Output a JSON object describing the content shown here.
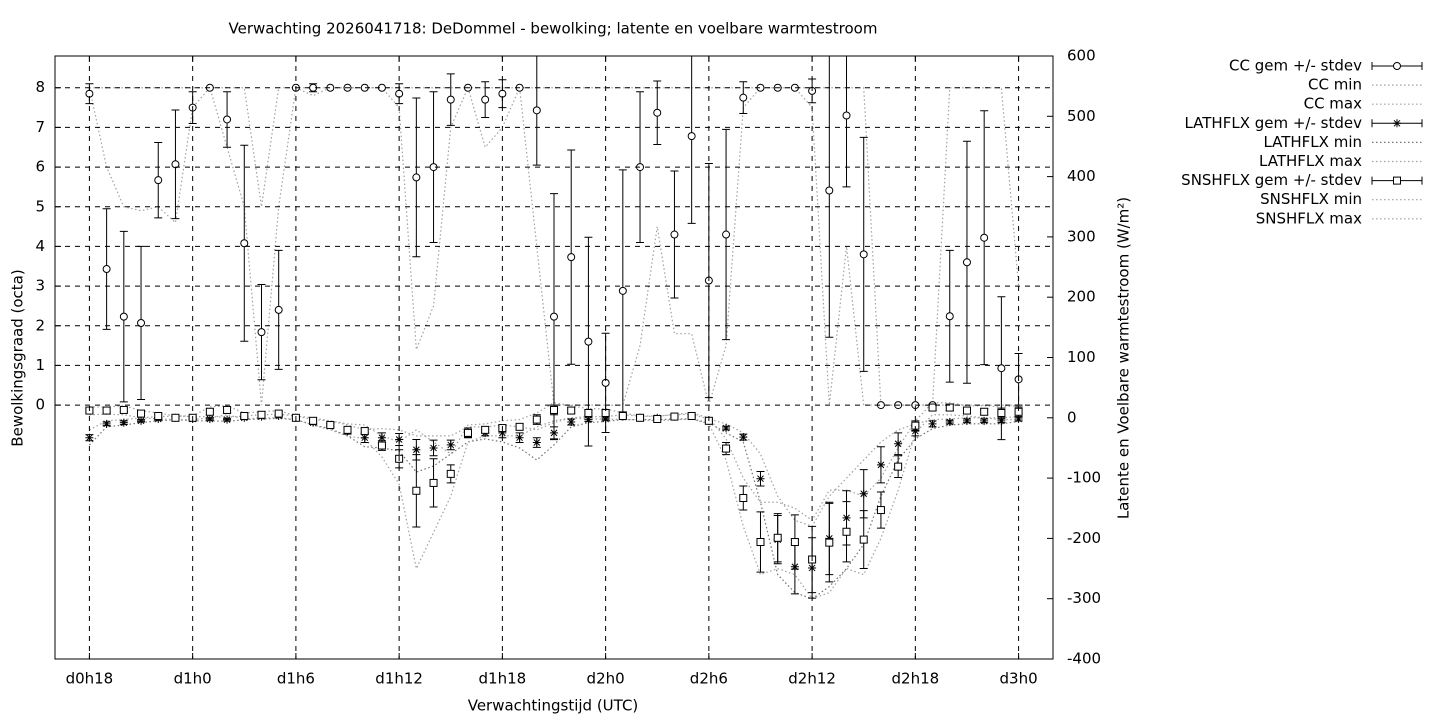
{
  "chart_data": {
    "type": "errorbar",
    "title": "Verwachting 2026041718: DeDommel - bewolking; latente en voelbare warmtestroom",
    "xlabel": "Verwachtingstijd (UTC)",
    "ylabel": "Bewolkingsgraad (octa)",
    "y2label": "Latente en Voelbare warmtestroom (W/m²)",
    "x": [
      18,
      19,
      20,
      21,
      22,
      23,
      24,
      25,
      26,
      27,
      28,
      29,
      30,
      31,
      32,
      33,
      34,
      35,
      36,
      37,
      38,
      39,
      40,
      41,
      42,
      43,
      44,
      45,
      46,
      47,
      48,
      49,
      50,
      51,
      52,
      53,
      54,
      55,
      56,
      57,
      58,
      59,
      60,
      61,
      62,
      63,
      64,
      65,
      66,
      67,
      68,
      69,
      70,
      71,
      72
    ],
    "xlim": [
      16,
      74
    ],
    "xticks": [
      {
        "value": 18,
        "label": "d0h18"
      },
      {
        "value": 24,
        "label": "d1h0"
      },
      {
        "value": 30,
        "label": "d1h6"
      },
      {
        "value": 36,
        "label": "d1h12"
      },
      {
        "value": 42,
        "label": "d1h18"
      },
      {
        "value": 48,
        "label": "d2h0"
      },
      {
        "value": 54,
        "label": "d2h6"
      },
      {
        "value": 60,
        "label": "d2h12"
      },
      {
        "value": 66,
        "label": "d2h18"
      },
      {
        "value": 72,
        "label": "d3h0"
      }
    ],
    "ylim": [
      -6.4,
      8.8
    ],
    "yticks": [
      0,
      1,
      2,
      3,
      4,
      5,
      6,
      7,
      8
    ],
    "y2lim": [
      -400,
      600
    ],
    "y2ticks": [
      -400,
      -300,
      -200,
      -100,
      0,
      100,
      200,
      300,
      400,
      500,
      600
    ],
    "grid": true,
    "legend": "outside top right",
    "series": [
      {
        "name": "CC gem +/- stdev",
        "color": "#000000",
        "style": "errorbars",
        "marker": "circle",
        "values": [
          7.85,
          3.43,
          2.23,
          2.07,
          5.67,
          6.07,
          7.5,
          8,
          7.2,
          4.08,
          1.84,
          2.4,
          8,
          8,
          8,
          8,
          8,
          8,
          7.85,
          5.74,
          6.0,
          7.7,
          8,
          7.7,
          7.85,
          8,
          7.43,
          2.23,
          3.73,
          1.6,
          0.56,
          2.88,
          6.0,
          7.37,
          4.3,
          6.78,
          3.14,
          4.3,
          7.75,
          8,
          8,
          8,
          7.92,
          5.41,
          7.3,
          3.8,
          0,
          0,
          0,
          0,
          2.24,
          3.6,
          4.22,
          0.93,
          0.65
        ],
        "errors": [
          0.25,
          1.52,
          2.15,
          1.93,
          0.95,
          1.37,
          0.4,
          0,
          0.7,
          2.47,
          1.2,
          1.5,
          0,
          0.1,
          0,
          0,
          0,
          0,
          0.25,
          2.0,
          1.9,
          0.65,
          0,
          0.45,
          0.35,
          0,
          1.38,
          3.1,
          2.7,
          2.63,
          1.25,
          3.05,
          1.9,
          0.8,
          1.6,
          2.2,
          2.95,
          2.65,
          0.4,
          0,
          0,
          0,
          0.3,
          3.7,
          1.8,
          2.95,
          0,
          0,
          0,
          0,
          1.66,
          3.05,
          3.2,
          1.8,
          0.65
        ]
      },
      {
        "name": "CC min",
        "color": "#a0a0a0",
        "style": "dotted",
        "values": [
          8,
          6,
          5,
          4.9,
          5,
          4.6,
          7.5,
          8,
          6.5,
          5,
          0,
          5,
          8,
          7.8,
          8,
          8,
          8,
          8,
          7.5,
          1.4,
          2.5,
          7,
          8,
          6.5,
          7,
          8,
          4,
          0,
          0,
          0,
          0,
          0,
          1.5,
          4.5,
          1.8,
          1.8,
          0,
          1.5,
          7.5,
          8,
          8,
          8,
          7.5,
          0,
          4,
          0,
          0,
          0,
          0,
          0,
          0,
          0,
          0,
          0,
          0
        ]
      },
      {
        "name": "CC max",
        "color": "#a0a0a0",
        "style": "dotted",
        "values": [
          8,
          8,
          8,
          8,
          8,
          8,
          8,
          8,
          8,
          8,
          5,
          8,
          8,
          8,
          8,
          8,
          8,
          8,
          8,
          8,
          8,
          8,
          8,
          8,
          8,
          8,
          8,
          8,
          8,
          8,
          8,
          8,
          8,
          8,
          8,
          8,
          8,
          8,
          8,
          8,
          8,
          8,
          8,
          8,
          8,
          8,
          0,
          0,
          0,
          0,
          8,
          8,
          8,
          8,
          3
        ]
      },
      {
        "name": "LATHFLX gem +/- stdev",
        "color": "#000000",
        "style": "errorbars",
        "marker": "star",
        "axis": "y2",
        "values": [
          -33,
          -10,
          -8,
          -5,
          -2,
          0,
          -2,
          -2,
          -3,
          0,
          2,
          3,
          0,
          -8,
          -12,
          -22,
          -33,
          -33,
          -36,
          -53,
          -50,
          -45,
          -27,
          -25,
          -25,
          -33,
          -41,
          -25,
          -7,
          -3,
          -2,
          2,
          0,
          0,
          2,
          3,
          -5,
          -17,
          -32,
          -101,
          -202,
          -247,
          -249,
          -200,
          -166,
          -126,
          -78,
          -43,
          -22,
          -10,
          -7,
          -5,
          -5,
          -5,
          -2
        ],
        "errors": [
          5,
          3,
          3,
          2,
          2,
          2,
          2,
          2,
          2,
          2,
          2,
          2,
          2,
          3,
          3,
          5,
          8,
          8,
          10,
          17,
          13,
          8,
          5,
          5,
          8,
          8,
          8,
          10,
          5,
          3,
          2,
          2,
          2,
          2,
          2,
          2,
          2,
          3,
          5,
          12,
          40,
          45,
          50,
          60,
          45,
          40,
          30,
          18,
          8,
          5,
          3,
          3,
          3,
          3,
          3
        ]
      },
      {
        "name": "LATHFLX min",
        "color": "#707070",
        "style": "dotted",
        "axis": "y2",
        "values": [
          -45,
          -15,
          -12,
          -8,
          -5,
          -3,
          -5,
          -5,
          -6,
          -3,
          -2,
          -1,
          -3,
          -12,
          -18,
          -30,
          -48,
          -50,
          -55,
          -90,
          -80,
          -60,
          -40,
          -35,
          -40,
          -50,
          -70,
          -45,
          -15,
          -8,
          -6,
          -3,
          -3,
          -3,
          -2,
          -2,
          -8,
          -25,
          -40,
          -140,
          -260,
          -290,
          -300,
          -280,
          -250,
          -210,
          -130,
          -70,
          -35,
          -18,
          -12,
          -10,
          -10,
          -10,
          -6
        ]
      },
      {
        "name": "LATHFLX max",
        "color": "#a0a0a0",
        "style": "dotted",
        "axis": "y2",
        "values": [
          -20,
          -5,
          -3,
          0,
          2,
          3,
          2,
          2,
          1,
          3,
          5,
          6,
          3,
          -3,
          -5,
          -12,
          -20,
          -18,
          -20,
          -30,
          -30,
          -30,
          -15,
          -15,
          -12,
          -15,
          -20,
          -8,
          0,
          2,
          2,
          5,
          3,
          3,
          5,
          6,
          -2,
          -10,
          -25,
          -60,
          -130,
          -170,
          -180,
          -130,
          -100,
          -70,
          -40,
          -20,
          -10,
          -3,
          -2,
          0,
          0,
          0,
          2
        ]
      },
      {
        "name": "SNSHFLX gem +/- stdev",
        "color": "#000000",
        "style": "errorbars",
        "marker": "square",
        "axis": "y2",
        "values": [
          12,
          12,
          13,
          7,
          3,
          0,
          0,
          10,
          13,
          3,
          5,
          7,
          0,
          -5,
          -12,
          -20,
          -22,
          -46,
          -68,
          -121,
          -108,
          -93,
          -25,
          -20,
          -17,
          -15,
          -3,
          13,
          12,
          8,
          8,
          3,
          0,
          -2,
          2,
          3,
          -5,
          -51,
          -133,
          -206,
          -199,
          -206,
          -235,
          -207,
          -189,
          -202,
          -153,
          -81,
          -13,
          17,
          17,
          12,
          10,
          8,
          10
        ],
        "errors": [
          3,
          3,
          3,
          3,
          3,
          2,
          2,
          5,
          5,
          3,
          3,
          3,
          2,
          5,
          3,
          5,
          5,
          8,
          15,
          60,
          40,
          15,
          8,
          5,
          5,
          5,
          8,
          8,
          5,
          5,
          5,
          3,
          2,
          2,
          2,
          3,
          3,
          10,
          20,
          50,
          40,
          45,
          55,
          65,
          50,
          48,
          30,
          18,
          8,
          5,
          5,
          5,
          5,
          8,
          8
        ]
      },
      {
        "name": "SNSHFLX min",
        "color": "#a0a0a0",
        "style": "dotted",
        "axis": "y2",
        "values": [
          5,
          6,
          5,
          0,
          -2,
          -3,
          -3,
          0,
          5,
          -2,
          0,
          0,
          -3,
          -12,
          -20,
          -30,
          -35,
          -65,
          -110,
          -250,
          -190,
          -130,
          -40,
          -30,
          -30,
          -30,
          -15,
          -5,
          0,
          -2,
          -2,
          -3,
          -3,
          -5,
          -3,
          -2,
          -10,
          -70,
          -180,
          -260,
          -250,
          -260,
          -300,
          -290,
          -250,
          -260,
          -200,
          -120,
          -25,
          5,
          5,
          3,
          0,
          -3,
          -3
        ]
      },
      {
        "name": "SNSHFLX max",
        "color": "#a0a0a0",
        "style": "dotted",
        "axis": "y2",
        "values": [
          18,
          18,
          20,
          12,
          8,
          3,
          3,
          18,
          20,
          8,
          10,
          12,
          3,
          0,
          -5,
          -10,
          -12,
          -30,
          -40,
          -20,
          -40,
          -60,
          -12,
          -10,
          -5,
          -3,
          8,
          25,
          20,
          15,
          15,
          8,
          3,
          2,
          6,
          8,
          0,
          -35,
          -100,
          -140,
          -140,
          -150,
          -170,
          -120,
          -120,
          -130,
          -100,
          -50,
          -5,
          25,
          25,
          20,
          20,
          18,
          20
        ]
      }
    ]
  }
}
